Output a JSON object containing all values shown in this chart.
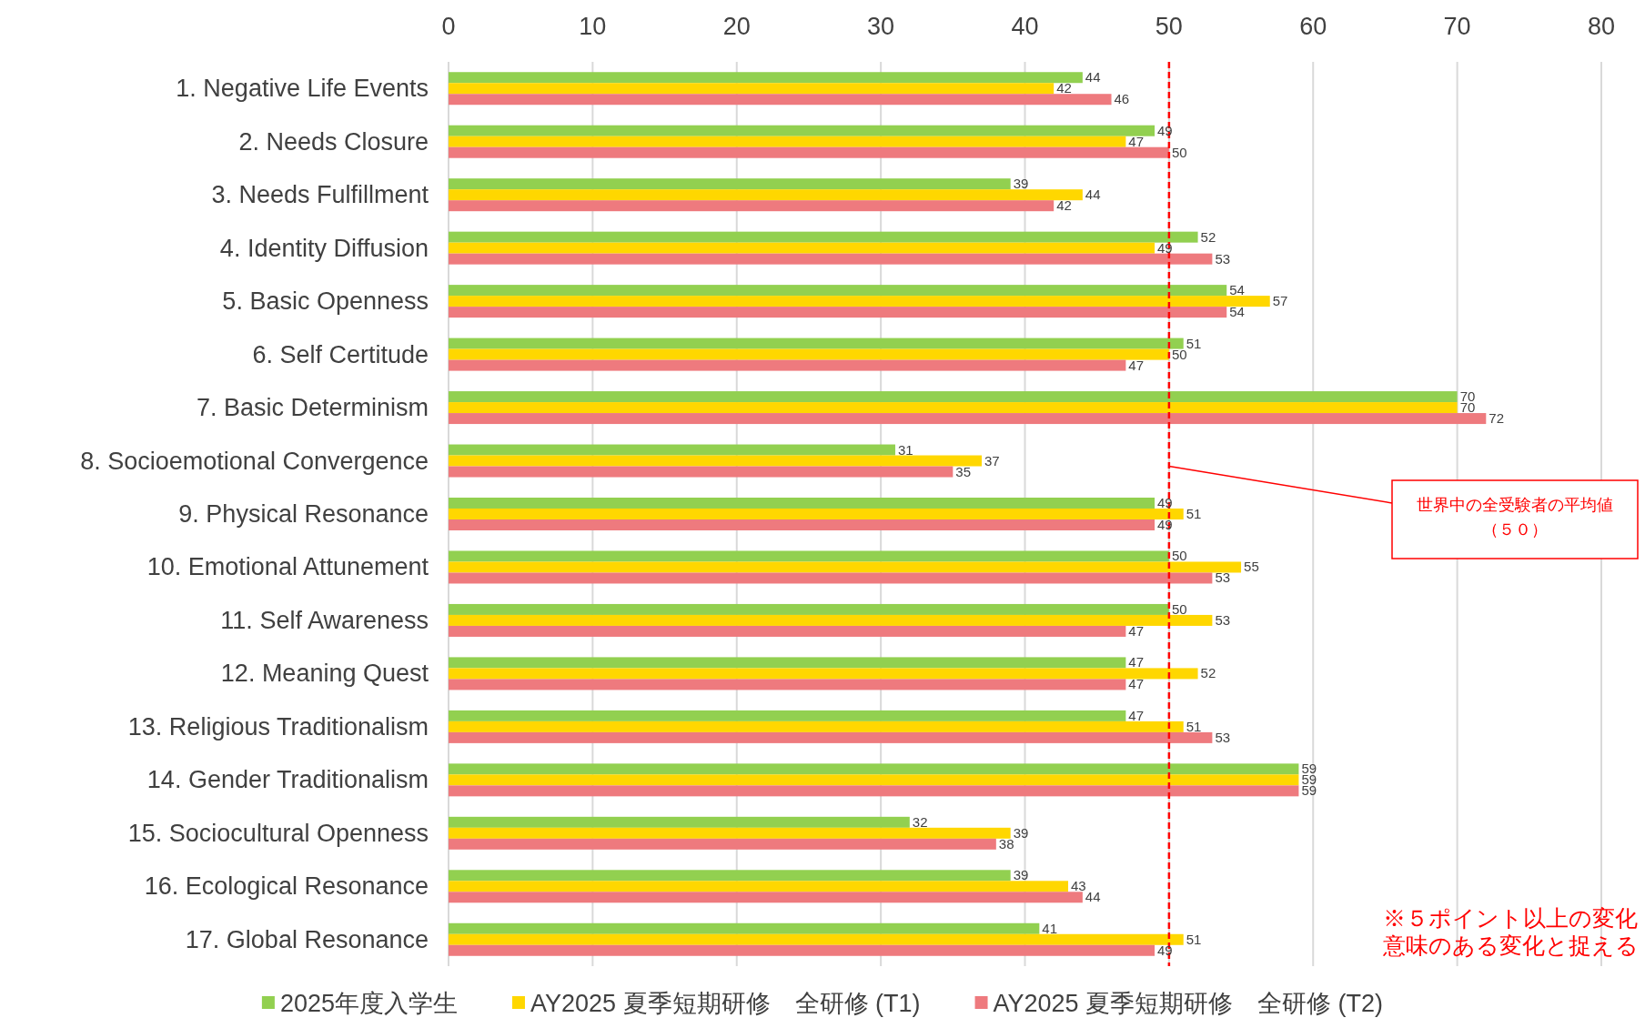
{
  "chart_data": {
    "type": "bar",
    "orientation": "horizontal",
    "categories": [
      "1. Negative Life Events",
      "2. Needs Closure",
      "3. Needs Fulfillment",
      "4. Identity Diffusion",
      "5. Basic Openness",
      "6. Self Certitude",
      "7. Basic Determinism",
      "8. Socioemotional Convergence",
      "9. Physical Resonance",
      "10. Emotional Attunement",
      "11. Self Awareness",
      "12. Meaning Quest",
      "13. Religious Traditionalism",
      "14. Gender Traditionalism",
      "15. Sociocultural Openness",
      "16. Ecological Resonance",
      "17. Global Resonance"
    ],
    "series": [
      {
        "name": "2025年度入学生",
        "color": "#92d050",
        "values": [
          44,
          49,
          39,
          52,
          54,
          51,
          70,
          31,
          49,
          50,
          50,
          47,
          47,
          59,
          32,
          39,
          41
        ]
      },
      {
        "name": "AY2025 夏季短期研修　全研修 (T1)",
        "color": "#ffd700",
        "values": [
          42,
          47,
          44,
          49,
          57,
          50,
          70,
          37,
          51,
          55,
          53,
          52,
          51,
          59,
          39,
          43,
          51
        ]
      },
      {
        "name": "AY2025 夏季短期研修　全研修 (T2)",
        "color": "#ee7a7e",
        "values": [
          46,
          50,
          42,
          53,
          54,
          47,
          72,
          35,
          49,
          53,
          47,
          47,
          53,
          59,
          38,
          44,
          49
        ]
      }
    ],
    "xlim": [
      0,
      80
    ],
    "xticks": [
      0,
      10,
      20,
      30,
      40,
      50,
      60,
      70,
      80
    ],
    "grid": "x",
    "legend": "bottom",
    "data_labels": true,
    "ref_lines": [
      {
        "axis": "x",
        "value": 50,
        "label": "世界中の全受験者の平均値（５０）",
        "color": "#ff0000",
        "line_style": "dashed"
      }
    ],
    "annotations": [
      "※５ポイント以上の変化",
      "意味のある変化と捉える"
    ]
  }
}
